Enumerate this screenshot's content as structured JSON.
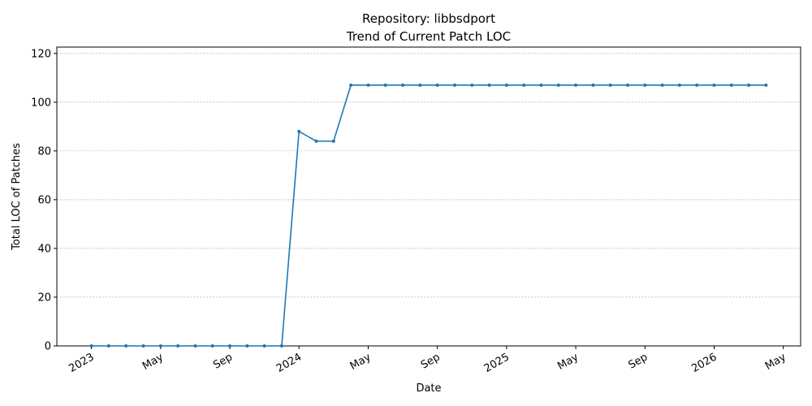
{
  "chart_data": {
    "type": "line",
    "title": "Repository: libbsdport",
    "subtitle": "Trend of Current Patch LOC",
    "xlabel": "Date",
    "ylabel": "Total LOC of Patches",
    "x": [
      "2023-01",
      "2023-02",
      "2023-03",
      "2023-04",
      "2023-05",
      "2023-06",
      "2023-07",
      "2023-08",
      "2023-09",
      "2023-10",
      "2023-11",
      "2023-12",
      "2024-01",
      "2024-02",
      "2024-03",
      "2024-04",
      "2024-05",
      "2024-06",
      "2024-07",
      "2024-08",
      "2024-09",
      "2024-10",
      "2024-11",
      "2024-12",
      "2025-01",
      "2025-02",
      "2025-03",
      "2025-04",
      "2025-05",
      "2025-06",
      "2025-07",
      "2025-08",
      "2025-09",
      "2025-10",
      "2025-11",
      "2025-12",
      "2026-01",
      "2026-02",
      "2026-03",
      "2026-04"
    ],
    "series": [
      {
        "name": "Total LOC of Patches",
        "color": "#1f77b4",
        "values": [
          0,
          0,
          0,
          0,
          0,
          0,
          0,
          0,
          0,
          0,
          0,
          0,
          88,
          84,
          84,
          107,
          107,
          107,
          107,
          107,
          107,
          107,
          107,
          107,
          107,
          107,
          107,
          107,
          107,
          107,
          107,
          107,
          107,
          107,
          107,
          107,
          107,
          107,
          107,
          107
        ]
      }
    ],
    "xlim": [
      "2022-11",
      "2026-06"
    ],
    "xticks": [
      {
        "value": "2023-01",
        "label": "2023"
      },
      {
        "value": "2023-05",
        "label": "May"
      },
      {
        "value": "2023-09",
        "label": "Sep"
      },
      {
        "value": "2024-01",
        "label": "2024"
      },
      {
        "value": "2024-05",
        "label": "May"
      },
      {
        "value": "2024-09",
        "label": "Sep"
      },
      {
        "value": "2025-01",
        "label": "2025"
      },
      {
        "value": "2025-05",
        "label": "May"
      },
      {
        "value": "2025-09",
        "label": "Sep"
      },
      {
        "value": "2026-01",
        "label": "2026"
      },
      {
        "value": "2026-05",
        "label": "May"
      }
    ],
    "ylim": [
      0,
      122.6
    ],
    "yticks": [
      0,
      20,
      40,
      60,
      80,
      100,
      120
    ],
    "grid": "y"
  }
}
